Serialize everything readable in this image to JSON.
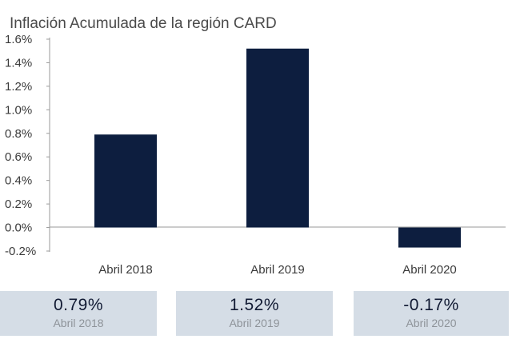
{
  "chart_data": {
    "type": "bar",
    "title": "Inflación Acumulada de la región CARD",
    "categories": [
      "Abril 2018",
      "Abril 2019",
      "Abril 2020"
    ],
    "values": [
      0.79,
      1.52,
      -0.17
    ],
    "ylim": [
      -0.2,
      1.6
    ],
    "yticks": [
      "1.6%",
      "1.4%",
      "1.2%",
      "1.0%",
      "0.8%",
      "0.6%",
      "0.4%",
      "0.2%",
      "0.0%",
      "-0.2%"
    ],
    "bar_color": "#0d1e3f",
    "grid": false,
    "legend": "none"
  },
  "cards": [
    {
      "value": "0.79%",
      "label": "Abril 2018"
    },
    {
      "value": "1.52%",
      "label": "Abril 2019"
    },
    {
      "value": "-0.17%",
      "label": "Abril 2020"
    }
  ],
  "colors": {
    "card_bg": "#d5dde6",
    "axis": "#9a9a9a"
  }
}
